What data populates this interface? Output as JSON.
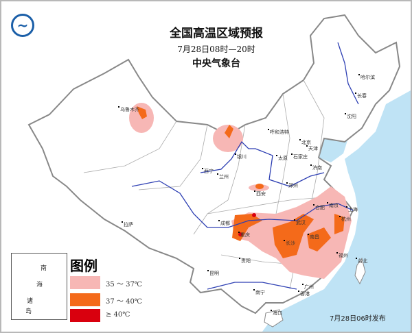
{
  "header": {
    "title": "全国高温区域预报",
    "time_range": "7月28日08时—20时",
    "issuer": "中央气象台"
  },
  "logo": {
    "icon": "cma-logo-icon",
    "color": "#1b5fa8"
  },
  "legend": {
    "title": "图例",
    "items": [
      {
        "label": "35 ～ 37℃",
        "color": "#f7b7b5"
      },
      {
        "label": "37 ～ 40℃",
        "color": "#f46a1a"
      },
      {
        "label": "≥ 40℃",
        "color": "#d9000e"
      }
    ]
  },
  "inset": {
    "label_chars": [
      "南",
      "海",
      "诸",
      "岛"
    ]
  },
  "release": "7月28日06时发布",
  "colors": {
    "sea": "#bfe3f5",
    "river": "#2d3fb3",
    "border": "#888888"
  },
  "cities": [
    "乌鲁木齐",
    "哈尔滨",
    "长春",
    "沈阳",
    "呼和浩特",
    "北京",
    "天津",
    "银川",
    "太原",
    "石家庄",
    "济南",
    "西宁",
    "兰州",
    "郑州",
    "西安",
    "拉萨",
    "成都",
    "重庆",
    "武汉",
    "合肥",
    "南京",
    "上海",
    "杭州",
    "长沙",
    "南昌",
    "福州",
    "台北",
    "贵阳",
    "昆明",
    "南宁",
    "广州",
    "香港",
    "海口"
  ]
}
